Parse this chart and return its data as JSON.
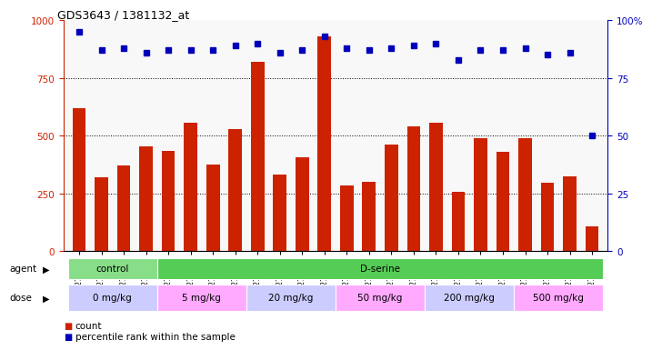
{
  "title": "GDS3643 / 1381132_at",
  "samples": [
    "GSM271362",
    "GSM271365",
    "GSM271367",
    "GSM271369",
    "GSM271372",
    "GSM271375",
    "GSM271377",
    "GSM271379",
    "GSM271382",
    "GSM271383",
    "GSM271384",
    "GSM271385",
    "GSM271386",
    "GSM271387",
    "GSM271388",
    "GSM271389",
    "GSM271390",
    "GSM271391",
    "GSM271392",
    "GSM271393",
    "GSM271394",
    "GSM271395",
    "GSM271396",
    "GSM271397"
  ],
  "counts": [
    620,
    320,
    370,
    455,
    435,
    555,
    375,
    530,
    820,
    330,
    405,
    930,
    285,
    300,
    460,
    540,
    555,
    255,
    490,
    430,
    490,
    295,
    325,
    105
  ],
  "percentiles": [
    95,
    87,
    88,
    86,
    87,
    87,
    87,
    89,
    90,
    86,
    87,
    93,
    88,
    87,
    88,
    89,
    90,
    83,
    87,
    87,
    88,
    85,
    86,
    50
  ],
  "agent_groups": [
    {
      "label": "control",
      "start": 0,
      "end": 4,
      "color": "#88dd88"
    },
    {
      "label": "D-serine",
      "start": 4,
      "end": 24,
      "color": "#55cc55"
    }
  ],
  "dose_groups": [
    {
      "label": "0 mg/kg",
      "start": 0,
      "end": 4,
      "color": "#ccccff"
    },
    {
      "label": "5 mg/kg",
      "start": 4,
      "end": 8,
      "color": "#ffaaff"
    },
    {
      "label": "20 mg/kg",
      "start": 8,
      "end": 12,
      "color": "#ccccff"
    },
    {
      "label": "50 mg/kg",
      "start": 12,
      "end": 16,
      "color": "#ffaaff"
    },
    {
      "label": "200 mg/kg",
      "start": 16,
      "end": 20,
      "color": "#ccccff"
    },
    {
      "label": "500 mg/kg",
      "start": 20,
      "end": 24,
      "color": "#ffaaff"
    }
  ],
  "bar_color": "#cc2200",
  "dot_color": "#0000bb",
  "ylim_left": [
    0,
    1000
  ],
  "ylim_right": [
    0,
    100
  ],
  "yticks_left": [
    0,
    250,
    500,
    750,
    1000
  ],
  "yticks_right": [
    0,
    25,
    50,
    75,
    100
  ],
  "background_color": "#ffffff"
}
